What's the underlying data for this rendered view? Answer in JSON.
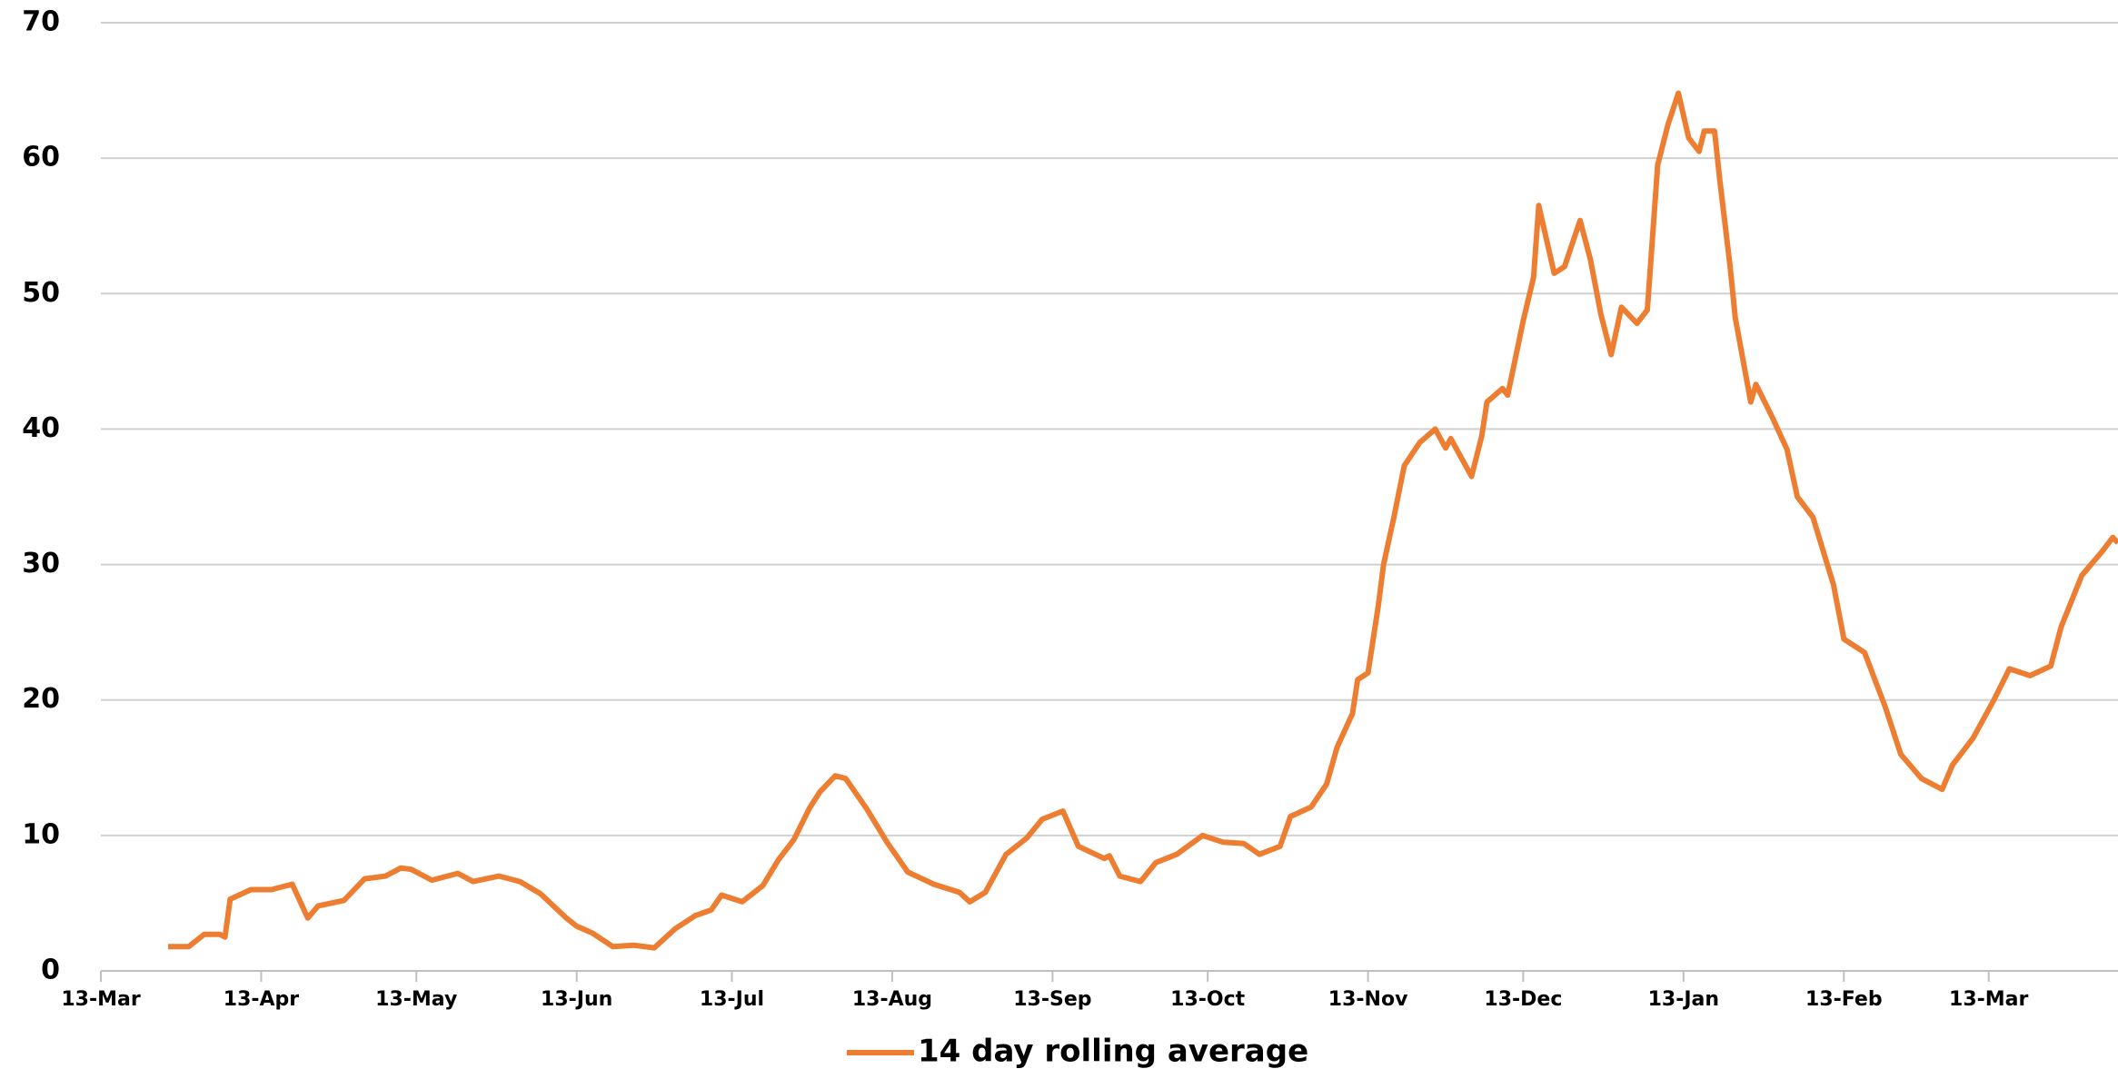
{
  "chart_data": {
    "type": "line",
    "x": [
      13,
      17,
      20,
      23,
      24,
      25,
      29,
      33,
      37,
      40,
      42,
      47,
      51,
      55,
      58,
      60,
      64,
      69,
      72,
      77,
      81,
      85,
      90,
      92,
      95,
      99,
      103,
      107,
      111,
      115,
      118,
      120,
      124,
      128,
      131,
      134,
      137,
      139,
      142,
      144,
      148,
      152,
      156,
      161,
      166,
      168,
      171,
      175,
      179,
      182,
      186,
      189,
      194,
      195,
      197,
      201,
      204,
      208,
      213,
      217,
      221,
      224,
      228,
      230,
      234,
      237,
      239,
      242,
      243,
      245,
      247,
      248,
      250,
      252,
      255,
      258,
      260,
      261,
      265,
      267,
      268,
      271,
      272,
      275,
      277,
      278,
      281,
      283,
      286,
      288,
      290,
      292,
      294,
      297,
      299,
      301,
      303,
      305,
      307,
      309,
      310,
      312,
      313,
      315,
      316,
      319,
      320,
      323,
      326,
      328,
      331,
      335,
      337,
      341,
      345,
      348,
      352,
      356,
      358,
      362,
      366,
      369,
      373,
      377,
      379,
      383,
      387,
      389,
      390
    ],
    "series": [
      {
        "name": "14 day rolling average",
        "color": "#ed7d31",
        "values": [
          1.8,
          1.8,
          2.7,
          2.7,
          2.5,
          5.3,
          6.0,
          6.0,
          6.4,
          3.9,
          4.8,
          5.2,
          6.8,
          7.0,
          7.6,
          7.5,
          6.7,
          7.2,
          6.6,
          7.0,
          6.6,
          5.7,
          3.9,
          3.3,
          2.8,
          1.8,
          1.9,
          1.7,
          3.1,
          4.1,
          4.5,
          5.6,
          5.1,
          6.3,
          8.2,
          9.7,
          12.0,
          13.2,
          14.4,
          14.2,
          12.0,
          9.5,
          7.3,
          6.4,
          5.8,
          5.1,
          5.8,
          8.6,
          9.8,
          11.2,
          11.8,
          9.2,
          8.3,
          8.5,
          7.0,
          6.6,
          8.0,
          8.6,
          10.0,
          9.5,
          9.4,
          8.6,
          9.2,
          11.4,
          12.1,
          13.8,
          16.5,
          19.0,
          21.5,
          22.0,
          27,
          30,
          33.5,
          37.3,
          39.0,
          40.0,
          38.6,
          39.3,
          36.5,
          39.5,
          42.0,
          43.0,
          42.5,
          48.0,
          51.2,
          56.5,
          51.5,
          52.0,
          55.4,
          52.5,
          48.5,
          45.5,
          49.0,
          47.8,
          48.8,
          59.5,
          62.5,
          64.8,
          61.5,
          60.5,
          62.0,
          62.0,
          58.4,
          52.0,
          48.2,
          42.0,
          43.3,
          41.0,
          38.5,
          35.0,
          33.5,
          28.5,
          24.5,
          23.5,
          19.5,
          16.0,
          14.2,
          13.4,
          15.2,
          17.2,
          20.0,
          22.3,
          21.8,
          22.5,
          25.4,
          29.2,
          31.0,
          32.0,
          31.6
        ]
      }
    ],
    "xlim": [
      0,
      390
    ],
    "xticks": [
      {
        "value": 0,
        "label": "13-Mar"
      },
      {
        "value": 31,
        "label": "13-Apr"
      },
      {
        "value": 61,
        "label": "13-May"
      },
      {
        "value": 92,
        "label": "13-Jun"
      },
      {
        "value": 122,
        "label": "13-Jul"
      },
      {
        "value": 153,
        "label": "13-Aug"
      },
      {
        "value": 184,
        "label": "13-Sep"
      },
      {
        "value": 214,
        "label": "13-Oct"
      },
      {
        "value": 245,
        "label": "13-Nov"
      },
      {
        "value": 275,
        "label": "13-Dec"
      },
      {
        "value": 306,
        "label": "13-Jan"
      },
      {
        "value": 337,
        "label": "13-Feb"
      },
      {
        "value": 365,
        "label": "13-Mar"
      }
    ],
    "ylim": [
      0,
      70
    ],
    "yticks": [
      0,
      10,
      20,
      30,
      40,
      50,
      60,
      70
    ],
    "grid": true,
    "legend": "bottom"
  }
}
